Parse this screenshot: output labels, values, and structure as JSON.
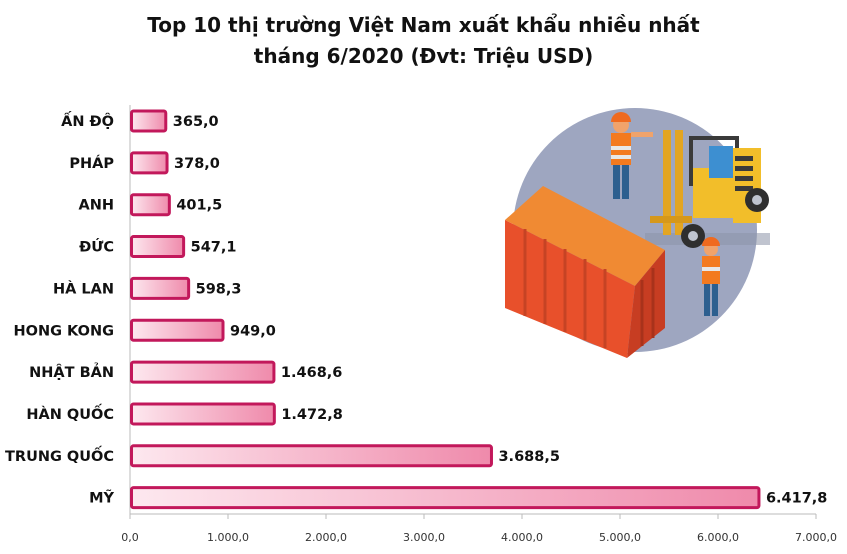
{
  "title_line1": "Top 10 thị trường Việt Nam xuất khẩu nhiều nhất",
  "title_line2": "tháng 6/2020 (Đvt: Triệu USD)",
  "colors": {
    "bar_stroke": "#c2185b",
    "bar_fill_start": "#fde8ef",
    "bar_fill_end": "#ef8aab",
    "axis": "#bbbbbb"
  },
  "chart_data": {
    "type": "bar",
    "orientation": "horizontal",
    "title": "Top 10 thị trường Việt Nam xuất khẩu nhiều nhất tháng 6/2020 (Đvt: Triệu USD)",
    "categories": [
      "ẤN ĐỘ",
      "PHÁP",
      "ANH",
      "ĐỨC",
      "HÀ LAN",
      "HONG KONG",
      "NHẬT BẢN",
      "HÀN QUỐC",
      "TRUNG QUỐC",
      "MỸ"
    ],
    "values": [
      365.0,
      378.0,
      401.5,
      547.1,
      598.3,
      949.0,
      1468.6,
      1472.8,
      3688.5,
      6417.8
    ],
    "value_labels": [
      "365,0",
      "378,0",
      "401,5",
      "547,1",
      "598,3",
      "949,0",
      "1.468,6",
      "1.472,8",
      "3.688,5",
      "6.417,8"
    ],
    "xlim": [
      0,
      7000
    ],
    "xticks": [
      0,
      1000,
      2000,
      3000,
      4000,
      5000,
      6000,
      7000
    ],
    "xtick_labels": [
      "0,0",
      "1.000,0",
      "2.000,0",
      "3.000,0",
      "4.000,0",
      "5.000,0",
      "6.000,0",
      "7.000,0"
    ],
    "xlabel": "",
    "ylabel": "",
    "grid": false,
    "legend": "none"
  }
}
